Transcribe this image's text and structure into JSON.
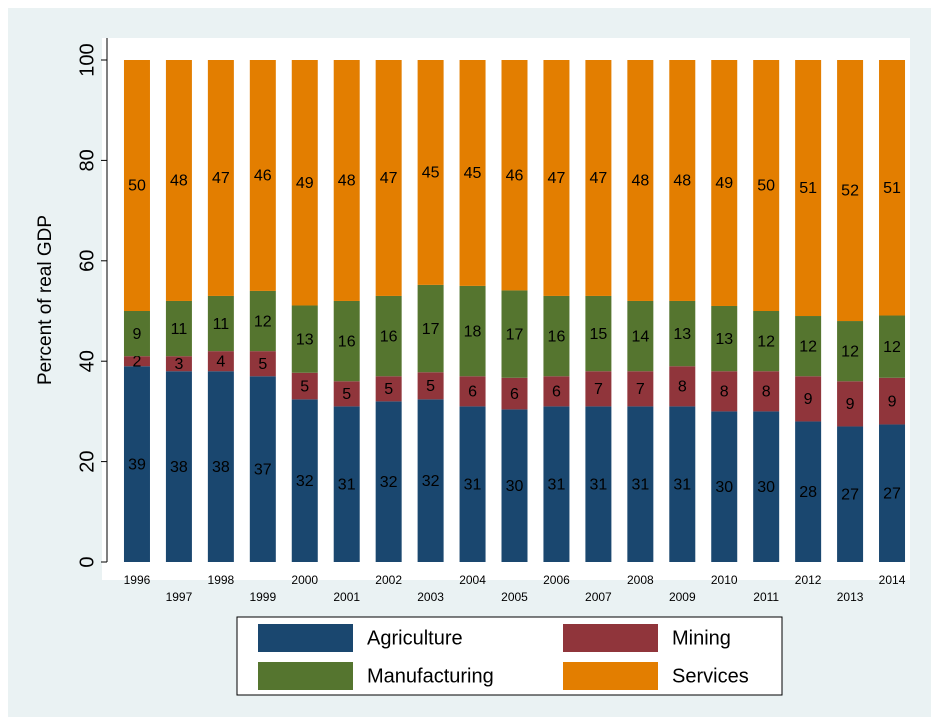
{
  "chart_data": {
    "type": "stacked_bar",
    "y_label": "Percent of real GDP",
    "categories": [
      "1996",
      "1997",
      "1998",
      "1999",
      "2000",
      "2001",
      "2002",
      "2003",
      "2004",
      "2005",
      "2006",
      "2007",
      "2008",
      "2009",
      "2010",
      "2011",
      "2012",
      "2013",
      "2014"
    ],
    "series": [
      {
        "name": "Agriculture",
        "color": "#1a476f",
        "values": [
          39,
          38,
          38,
          37,
          32.4,
          31,
          32,
          32.4,
          31,
          30.4,
          31,
          31,
          31,
          31,
          30,
          30,
          28,
          27,
          27.4
        ],
        "value_labels": [
          "39",
          "38",
          "38",
          "37",
          "32",
          "31",
          "32",
          "32",
          "31",
          "30",
          "31",
          "31",
          "31",
          "31",
          "30",
          "30",
          "28",
          "27",
          "27"
        ]
      },
      {
        "name": "Mining",
        "color": "#90353b",
        "values": [
          2,
          3,
          4,
          5,
          5.3,
          5,
          5,
          5.4,
          6,
          6.3,
          6,
          7,
          7,
          8,
          8,
          8,
          9,
          9,
          9.3
        ],
        "value_labels": [
          "2",
          "3",
          "4",
          "5",
          "5",
          "5",
          "5",
          "5",
          "6",
          "6",
          "6",
          "7",
          "7",
          "8",
          "8",
          "8",
          "9",
          "9",
          "9"
        ]
      },
      {
        "name": "Manufacturing",
        "color": "#55752f",
        "values": [
          9,
          11,
          11,
          12,
          13.4,
          16,
          16,
          17.4,
          18,
          17.4,
          16,
          15,
          14,
          13,
          13,
          12,
          12,
          12,
          12.4
        ],
        "value_labels": [
          "9",
          "11",
          "11",
          "12",
          "13",
          "16",
          "16",
          "17",
          "18",
          "17",
          "16",
          "15",
          "14",
          "13",
          "13",
          "12",
          "12",
          "12",
          "12"
        ]
      },
      {
        "name": "Services",
        "color": "#e37e00",
        "values": [
          50,
          48,
          47,
          46,
          48.9,
          48,
          47,
          44.8,
          45,
          45.9,
          47,
          47,
          48,
          48,
          49,
          50,
          51,
          52,
          50.9
        ],
        "value_labels": [
          "50",
          "48",
          "47",
          "46",
          "49",
          "48",
          "47",
          "45",
          "45",
          "46",
          "47",
          "47",
          "48",
          "48",
          "49",
          "50",
          "51",
          "52",
          "51"
        ]
      }
    ],
    "ylim": [
      0,
      100
    ],
    "yticks": [
      0,
      20,
      40,
      60,
      80,
      100
    ],
    "grid": false,
    "legend": "bottom"
  }
}
